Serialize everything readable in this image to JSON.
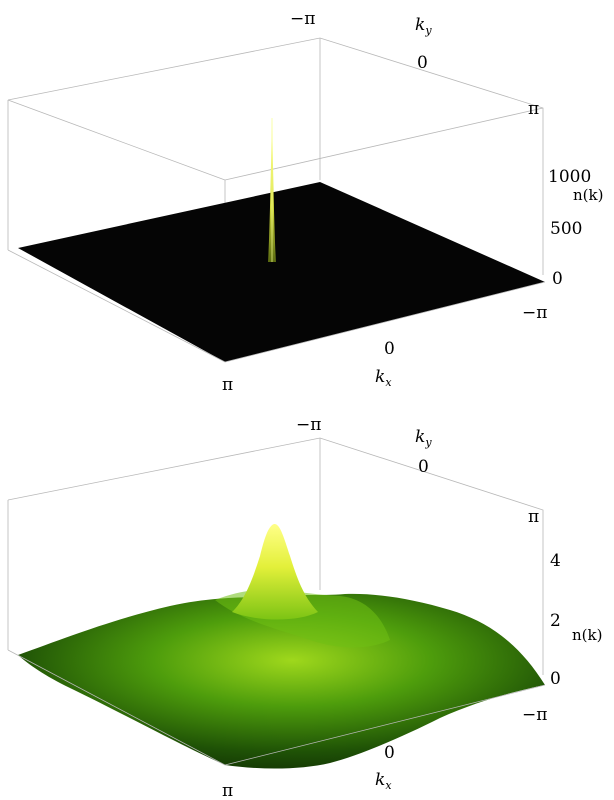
{
  "chart_data": [
    {
      "type": "surface",
      "xlabel": "k_x",
      "ylabel": "k_y",
      "zlabel": "n(k)",
      "x_ticks": [
        "π",
        "0",
        "−π"
      ],
      "y_ticks": [
        "−π",
        "0",
        "π"
      ],
      "z_ticks": [
        "0",
        "500",
        "1000"
      ],
      "zlim": [
        0,
        1200
      ],
      "peak_value": 1200,
      "peak_at": [
        0,
        0
      ],
      "background_value": 0,
      "colors": {
        "surface_low": "#000000",
        "surface_high": "#ffff66"
      }
    },
    {
      "type": "surface",
      "xlabel": "k_x",
      "ylabel": "k_y",
      "zlabel": "n(k)",
      "x_ticks": [
        "π",
        "0",
        "−π"
      ],
      "y_ticks": [
        "−π",
        "0",
        "π"
      ],
      "z_ticks": [
        "0",
        "2",
        "4"
      ],
      "zlim": [
        0,
        5
      ],
      "peak_value": 4.9,
      "peak_at": [
        0,
        0
      ],
      "background_value": 1.5,
      "colors": {
        "surface_low": "#0d2a00",
        "surface_mid": "#3a8f00",
        "surface_high": "#ffff66"
      }
    }
  ]
}
